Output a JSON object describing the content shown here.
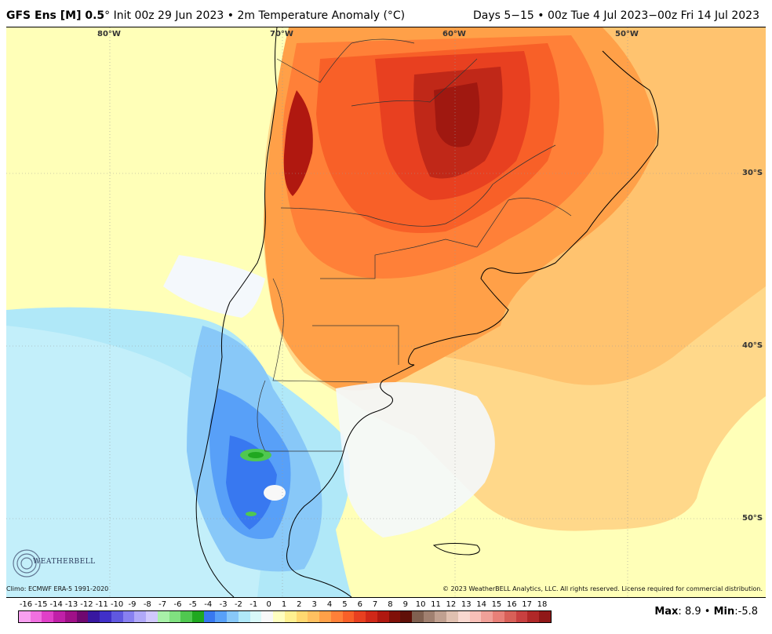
{
  "header": {
    "model": "GFS Ens [M] 0.5",
    "degree_symbol": "°",
    "init": "Init 00z 29 Jun 2023",
    "sep": "•",
    "variable": "2m Temperature Anomaly (°C)",
    "valid": "Days 5−15 • 00z Tue 4 Jul 2023−00z Fri 14 Jul 2023"
  },
  "map": {
    "longitude_labels": [
      "80°W",
      "70°W",
      "60°W",
      "50°W"
    ],
    "latitude_labels": [
      "30°S",
      "40°S",
      "50°S"
    ]
  },
  "footer": {
    "climo": "Climo: ECMWF ERA-5 1991-2020",
    "copyright": "© 2023 WeatherBELL Analytics, LLC. All rights reserved. License required for commercial distribution.",
    "logo_text": "WEATHERBELL",
    "max_label": "Max",
    "max_value": "8.9",
    "min_label": "Min",
    "min_value": "-5.8",
    "sep": "•"
  },
  "colorbar": {
    "labels": [
      "-16",
      "-15",
      "-14",
      "-13",
      "-12",
      "-11",
      "-10",
      "-9",
      "-8",
      "-7",
      "-6",
      "-5",
      "-4",
      "-3",
      "-2",
      "-1",
      "0",
      "1",
      "2",
      "3",
      "4",
      "5",
      "6",
      "7",
      "8",
      "9",
      "10",
      "11",
      "12",
      "13",
      "14",
      "15",
      "16",
      "17",
      "18"
    ],
    "colors": [
      "#f8a0f0",
      "#f070e0",
      "#e040c8",
      "#c020a8",
      "#a01088",
      "#700870",
      "#3818a0",
      "#4030c8",
      "#6058e0",
      "#8880f0",
      "#b0a8f8",
      "#d0c8fc",
      "#a8f0a8",
      "#80e080",
      "#50c850",
      "#20a820",
      "#3878f0",
      "#58a0f8",
      "#88c8f8",
      "#b0e8f8",
      "#d8f8f8",
      "#f8f8f8",
      "#ffffc0",
      "#fff090",
      "#ffd870",
      "#ffc060",
      "#ffa048",
      "#ff8038",
      "#f86028",
      "#e84020",
      "#d02818",
      "#b01810",
      "#801008",
      "#601008",
      "#806050",
      "#a08070",
      "#c0a090",
      "#e0c0b0",
      "#f8d8d0",
      "#f8c0b8",
      "#f0a098",
      "#e88078",
      "#d86058",
      "#c84040",
      "#b02828",
      "#901818"
    ]
  }
}
